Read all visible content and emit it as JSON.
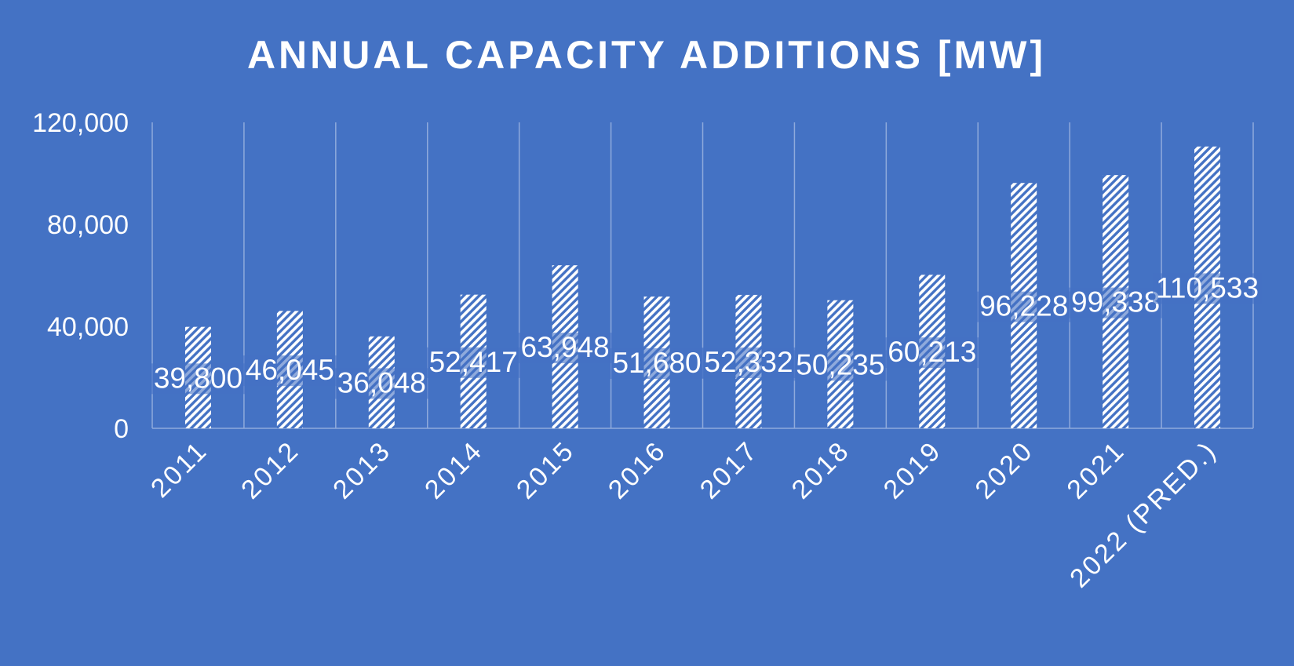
{
  "chart_data": {
    "type": "bar",
    "title": "ANNUAL CAPACITY ADDITIONS [MW]",
    "xlabel": "",
    "ylabel": "",
    "categories": [
      "2011",
      "2012",
      "2013",
      "2014",
      "2015",
      "2016",
      "2017",
      "2018",
      "2019",
      "2020",
      "2021",
      "2022 (PRED.)"
    ],
    "values": [
      39800,
      46045,
      36048,
      52417,
      63948,
      51680,
      52332,
      50235,
      60213,
      96228,
      99338,
      110533
    ],
    "data_labels": [
      "39,800",
      "46,045",
      "36,048",
      "52,417",
      "63,948",
      "51,680",
      "52,332",
      "50,235",
      "60,213",
      "96,228",
      "99,338",
      "110,533"
    ],
    "y_ticks": [
      "0",
      "40,000",
      "80,000",
      "120,000"
    ],
    "y_tick_values": [
      0,
      40000,
      80000,
      120000
    ],
    "ylim": [
      0,
      120000
    ],
    "grid": "vertical",
    "legend": "none",
    "colors": {
      "background": "#4472c4",
      "text": "#ffffff",
      "bar_pattern": "#ffffff",
      "gridline": "#8faadc"
    }
  }
}
